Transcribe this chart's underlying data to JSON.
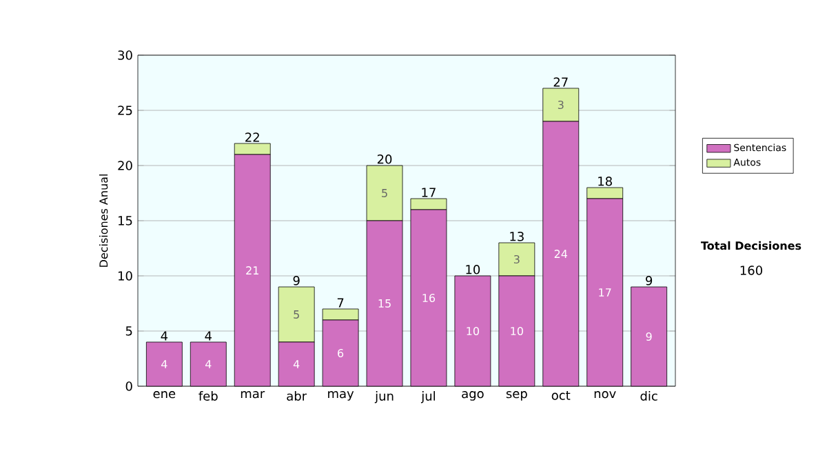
{
  "chart_data": {
    "type": "bar",
    "stacked": true,
    "ylabel": "Decisiones Anual",
    "categories": [
      "ene",
      "feb",
      "mar",
      "abr",
      "may",
      "jun",
      "jul",
      "ago",
      "sep",
      "oct",
      "nov",
      "dic"
    ],
    "series": [
      {
        "name": "Sentencias",
        "color": "#d070c0",
        "values": [
          4,
          4,
          21,
          4,
          6,
          15,
          16,
          10,
          10,
          24,
          17,
          9
        ],
        "value_labels": [
          "4",
          "4",
          "21",
          "4",
          "6",
          "15",
          "16",
          "10",
          "10",
          "24",
          "17",
          "9"
        ]
      },
      {
        "name": "Autos",
        "color": "#d8f0a0",
        "values": [
          0,
          0,
          1,
          5,
          1,
          5,
          1,
          0,
          3,
          3,
          1,
          0
        ],
        "value_labels": [
          null,
          null,
          null,
          "5",
          null,
          "5",
          null,
          null,
          "3",
          "3",
          null,
          null
        ]
      }
    ],
    "totals": [
      "4",
      "4",
      "22",
      "9",
      "7",
      "20",
      "17",
      "10",
      "13",
      "27",
      "18",
      "9"
    ],
    "ylim": [
      0,
      30
    ],
    "yticks": [
      0,
      5,
      10,
      15,
      20,
      25,
      30
    ],
    "grid": "y",
    "legend": "right",
    "annotations": [
      "Total Decisiones",
      "160"
    ]
  }
}
